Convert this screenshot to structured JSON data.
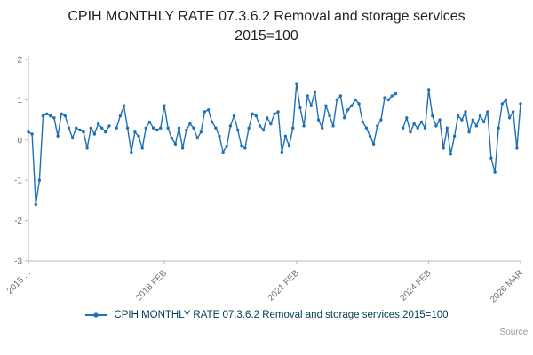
{
  "title": "CPIH MONTHLY RATE 07.3.6.2 Removal and storage services 2015=100",
  "legend": {
    "label": "CPIH MONTHLY RATE 07.3.6.2 Removal and storage services 2015=100"
  },
  "source_label": "Source:",
  "colors": {
    "line": "#1d70b8",
    "axis": "#b8b8b8",
    "tick_text": "#707070",
    "title_text": "#222222",
    "legend_text": "#003c57",
    "source_text": "#999999"
  },
  "chart_data": {
    "type": "line",
    "title": "CPIH MONTHLY RATE 07.3.6.2 Removal and storage services 2015=100",
    "xlabel": "",
    "ylabel": "",
    "ylim": [
      -3,
      2
    ],
    "yticks": [
      2,
      1,
      0,
      -1,
      -2,
      -3
    ],
    "grid": false,
    "legend_position": "bottom",
    "frequency": "monthly",
    "x_range": [
      "2015 JAN",
      "2026 MAR"
    ],
    "x_tick_labels": [
      "2015 ...",
      "2018 FEB",
      "2021 FEB",
      "2024 FEB",
      "2026 MAR"
    ],
    "x_tick_indices": [
      0,
      37,
      73,
      109,
      134
    ],
    "series": [
      {
        "name": "CPIH MONTHLY RATE 07.3.6.2 Removal and storage services 2015=100",
        "values": [
          0.2,
          0.15,
          -1.6,
          -1.0,
          0.6,
          0.65,
          0.6,
          0.55,
          0.1,
          0.65,
          0.6,
          0.3,
          0.05,
          0.3,
          0.25,
          0.2,
          -0.2,
          0.3,
          0.15,
          0.4,
          0.3,
          0.2,
          0.35,
          null,
          0.3,
          0.6,
          0.85,
          0.3,
          -0.3,
          0.2,
          0.1,
          -0.2,
          0.3,
          0.45,
          0.3,
          0.25,
          0.3,
          0.85,
          0.3,
          0.05,
          -0.1,
          0.3,
          -0.2,
          0.25,
          0.4,
          0.3,
          0.05,
          0.2,
          0.7,
          0.75,
          0.45,
          0.3,
          0.1,
          -0.3,
          -0.15,
          0.35,
          0.6,
          0.25,
          -0.15,
          -0.2,
          0.3,
          0.65,
          0.6,
          0.35,
          0.25,
          0.55,
          0.4,
          0.65,
          0.7,
          -0.3,
          0.1,
          -0.15,
          0.3,
          1.4,
          0.8,
          0.35,
          1.1,
          0.85,
          1.2,
          0.5,
          0.3,
          0.85,
          0.6,
          0.35,
          1.0,
          1.1,
          0.55,
          0.75,
          0.85,
          1.0,
          0.9,
          0.45,
          0.3,
          0.1,
          -0.1,
          0.35,
          0.5,
          1.05,
          1.0,
          1.1,
          1.15,
          null,
          0.3,
          0.55,
          0.2,
          0.4,
          0.3,
          0.45,
          0.3,
          1.25,
          0.6,
          0.35,
          0.5,
          -0.2,
          0.3,
          -0.35,
          0.1,
          0.6,
          0.5,
          0.7,
          0.2,
          0.5,
          0.35,
          0.6,
          0.45,
          0.7,
          -0.45,
          -0.8,
          0.3,
          0.9,
          1.0,
          0.55,
          0.7,
          -0.2,
          0.9
        ]
      }
    ]
  }
}
